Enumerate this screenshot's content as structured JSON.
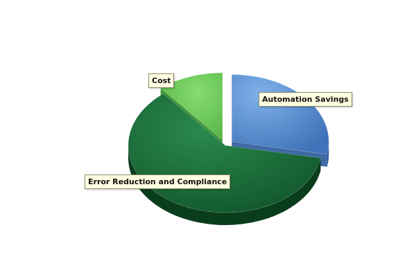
{
  "chart_data": {
    "type": "pie",
    "style": "3d-exploded",
    "title": "",
    "slices": [
      {
        "label": "Automation Savings",
        "value": 28,
        "color": "#5b8fd1",
        "exploded": true
      },
      {
        "label": "Error Reduction and Compliance",
        "value": 61,
        "color": "#1f6b3a",
        "exploded": false
      },
      {
        "label": "Cost",
        "value": 11,
        "color": "#6fcf5a",
        "exploded": true
      }
    ]
  }
}
